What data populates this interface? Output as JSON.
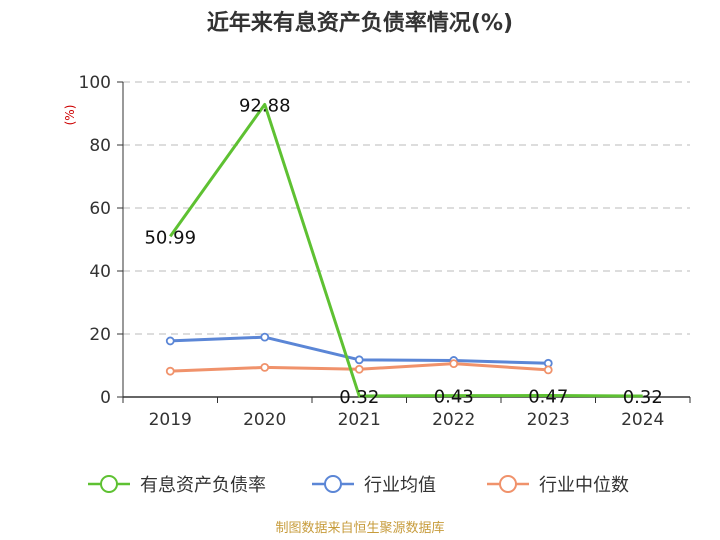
{
  "chart_data": {
    "type": "line",
    "title": "近年来有息资产负债率情况(%)",
    "ylabel": "(%)",
    "categories": [
      "2019",
      "2020",
      "2021",
      "2022",
      "2023",
      "2024"
    ],
    "ylim": [
      0,
      100
    ],
    "yticks": [
      0,
      20,
      40,
      60,
      80,
      100
    ],
    "grid": true,
    "legend_position": "bottom",
    "series": [
      {
        "name": "有息资产负债率",
        "color": "#5ec132",
        "values": [
          50.99,
          92.88,
          0.32,
          0.43,
          0.47,
          0.32
        ],
        "labels": [
          "50.99",
          "92.88",
          "0.32",
          "0.43",
          "0.47",
          "0.32"
        ]
      },
      {
        "name": "行业均值",
        "color": "#5b86d6",
        "values": [
          17.8,
          19.0,
          11.8,
          11.6,
          10.7,
          null
        ]
      },
      {
        "name": "行业中位数",
        "color": "#f0926b",
        "values": [
          8.2,
          9.4,
          8.8,
          10.6,
          8.6,
          null
        ]
      }
    ]
  },
  "source": "制图数据来自恒生聚源数据库"
}
